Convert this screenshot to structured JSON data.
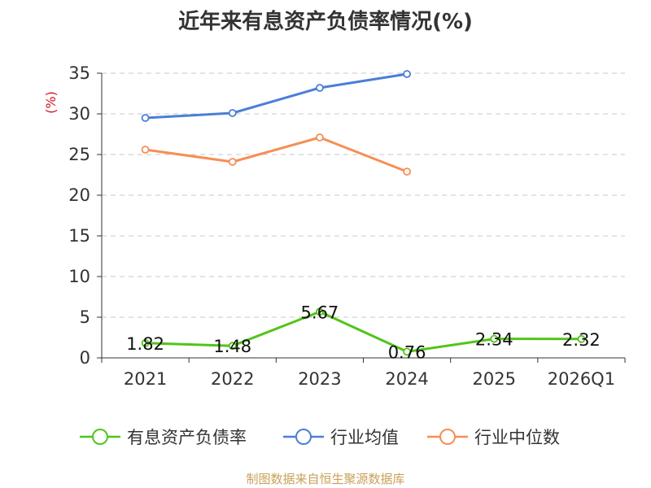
{
  "chart_data": {
    "type": "line",
    "title": "近年来有息资产负债率情况(%)",
    "ylabel": "(%)",
    "xlabel": "",
    "categories": [
      "2021",
      "2022",
      "2023",
      "2024",
      "2025",
      "2026Q1"
    ],
    "ylim": [
      0,
      35
    ],
    "yticks": [
      0,
      5,
      10,
      15,
      20,
      25,
      30,
      35
    ],
    "grid": true,
    "legend_position": "bottom",
    "series": [
      {
        "name": "有息资产负债率",
        "color": "#52c41a",
        "values": [
          1.82,
          1.48,
          5.67,
          0.76,
          2.34,
          2.32
        ],
        "labels": [
          "1.82",
          "1.48",
          "5.67",
          "0.76",
          "2.34",
          "2.32"
        ]
      },
      {
        "name": "行业均值",
        "color": "#4a7fd8",
        "values": [
          29.5,
          30.1,
          33.2,
          34.9,
          null,
          null
        ]
      },
      {
        "name": "行业中位数",
        "color": "#f68e55",
        "values": [
          25.6,
          24.1,
          27.1,
          22.9,
          null,
          null
        ]
      }
    ]
  },
  "source_note": "制图数据来自恒生聚源数据库"
}
